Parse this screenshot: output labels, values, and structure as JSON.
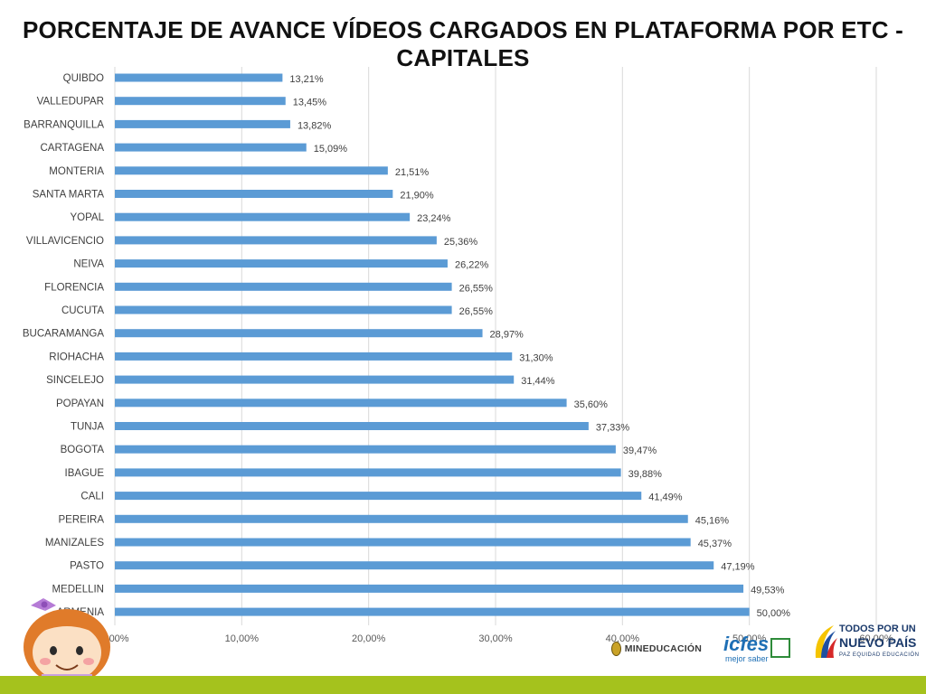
{
  "chart_data": {
    "type": "bar",
    "orientation": "horizontal",
    "title": "PORCENTAJE DE AVANCE VÍDEOS CARGADOS EN PLATAFORMA POR ETC - CAPITALES",
    "categories": [
      "QUIBDO",
      "VALLEDUPAR",
      "BARRANQUILLA",
      "CARTAGENA",
      "MONTERIA",
      "SANTA MARTA",
      "YOPAL",
      "VILLAVICENCIO",
      "NEIVA",
      "FLORENCIA",
      "CUCUTA",
      "BUCARAMANGA",
      "RIOHACHA",
      "SINCELEJO",
      "POPAYAN",
      "TUNJA",
      "BOGOTA",
      "IBAGUE",
      "CALI",
      "PEREIRA",
      "MANIZALES",
      "PASTO",
      "MEDELLIN",
      "ARMENIA"
    ],
    "values": [
      13.21,
      13.45,
      13.82,
      15.09,
      21.51,
      21.9,
      23.24,
      25.36,
      26.22,
      26.55,
      26.55,
      28.97,
      31.3,
      31.44,
      35.6,
      37.33,
      39.47,
      39.88,
      41.49,
      45.16,
      45.37,
      47.19,
      49.53,
      50.0
    ],
    "value_labels": [
      "13,21%",
      "13,45%",
      "13,82%",
      "15,09%",
      "21,51%",
      "21,90%",
      "23,24%",
      "25,36%",
      "26,22%",
      "26,55%",
      "26,55%",
      "28,97%",
      "31,30%",
      "31,44%",
      "35,60%",
      "37,33%",
      "39,47%",
      "39,88%",
      "41,49%",
      "45,16%",
      "45,37%",
      "47,19%",
      "49,53%",
      "50,00%"
    ],
    "xlim": [
      0,
      60
    ],
    "x_ticks": [
      0,
      10,
      20,
      30,
      40,
      50,
      60
    ],
    "x_tick_labels": [
      "0,00%",
      "10,00%",
      "20,00%",
      "30,00%",
      "40,00%",
      "50,00%",
      "60,00%"
    ],
    "xlabel": "",
    "ylabel": "",
    "grid": "vertical",
    "bar_color": "#5b9bd5",
    "grid_color": "#d9d9d9"
  },
  "logos": {
    "mineducacion": "MINEDUCACIÓN",
    "icfes": "icfes",
    "icfes_tagline": "mejor saber",
    "todos_line1": "TODOS POR UN",
    "todos_line2": "NUEVO PAÍS",
    "todos_line3": "PAZ  EQUIDAD  EDUCACIÓN"
  },
  "colors": {
    "footer_band": "#a5c21d",
    "title_text": "#111111"
  }
}
